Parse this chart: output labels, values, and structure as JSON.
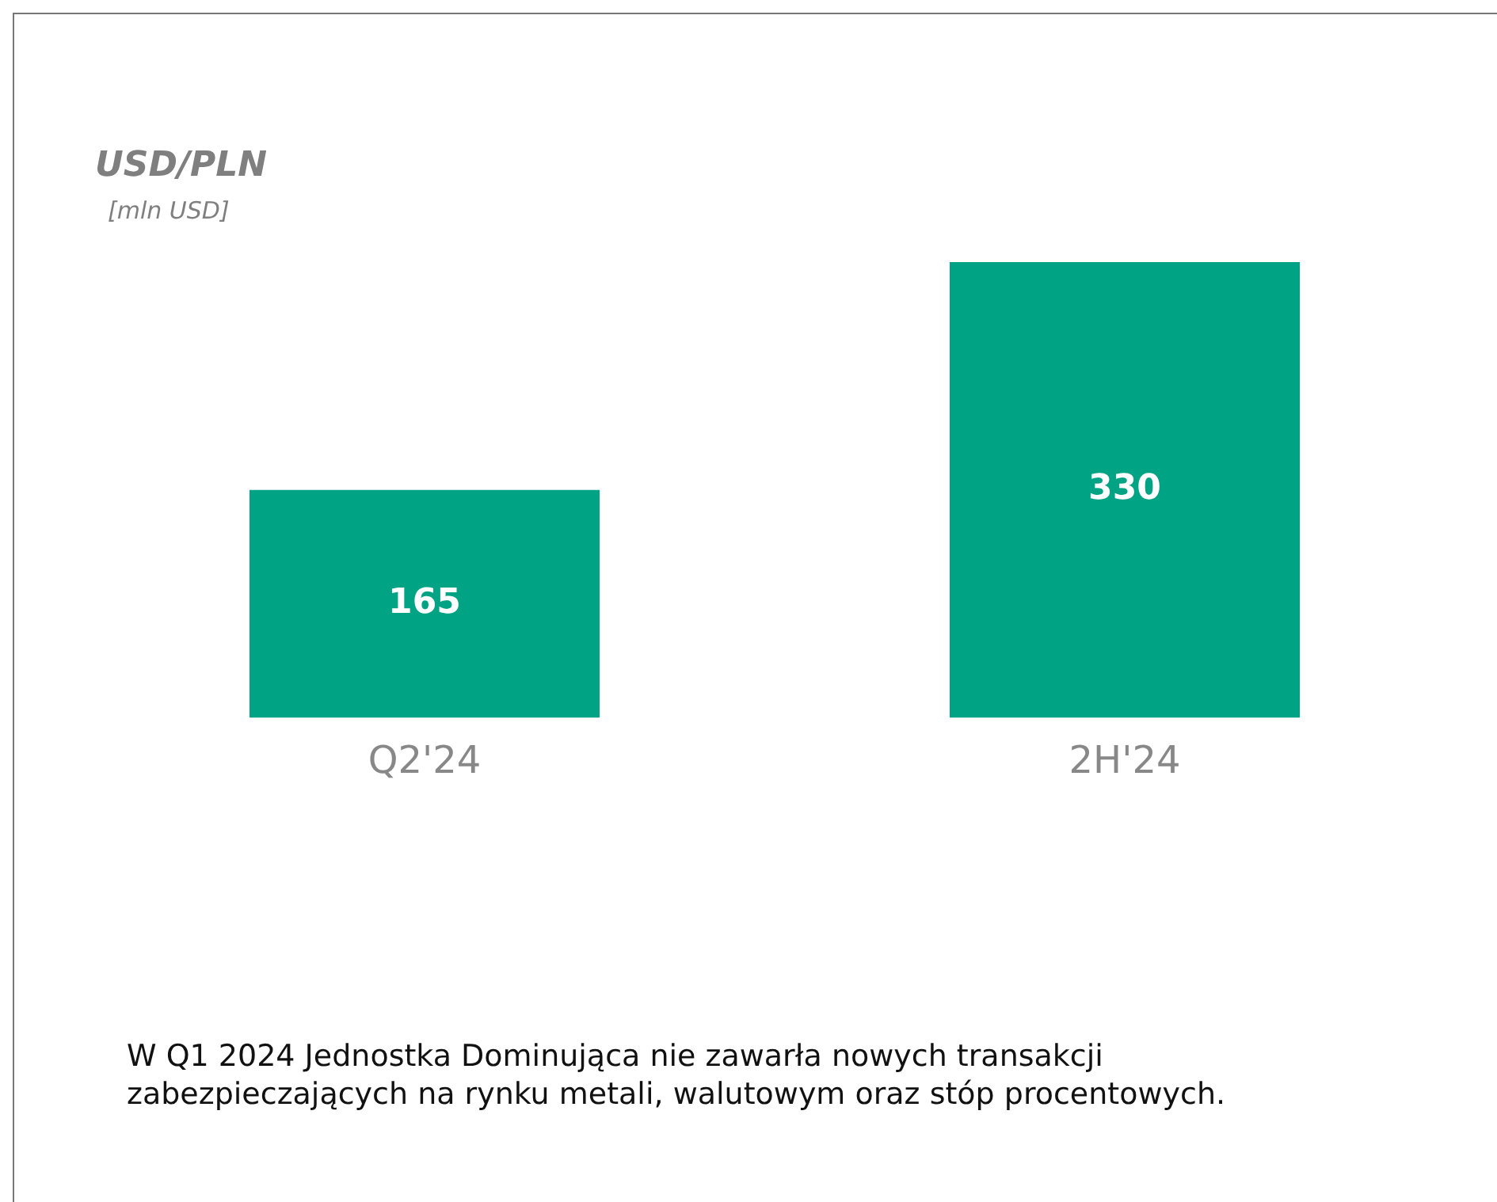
{
  "chart_data": {
    "type": "bar",
    "title": "USD/PLN",
    "subtitle": "[mln USD]",
    "categories": [
      "Q2'24",
      "2H'24"
    ],
    "values": [
      165,
      330
    ],
    "color": "#00a383",
    "data_labels": true,
    "tick_labels": "x",
    "legend": false,
    "grid": false,
    "annotations": [
      "W Q1 2024 Jednostka Dominująca nie zawarła nowych transakcji zabezpieczających na rynku metali, walutowym oraz stóp procentowych."
    ]
  }
}
